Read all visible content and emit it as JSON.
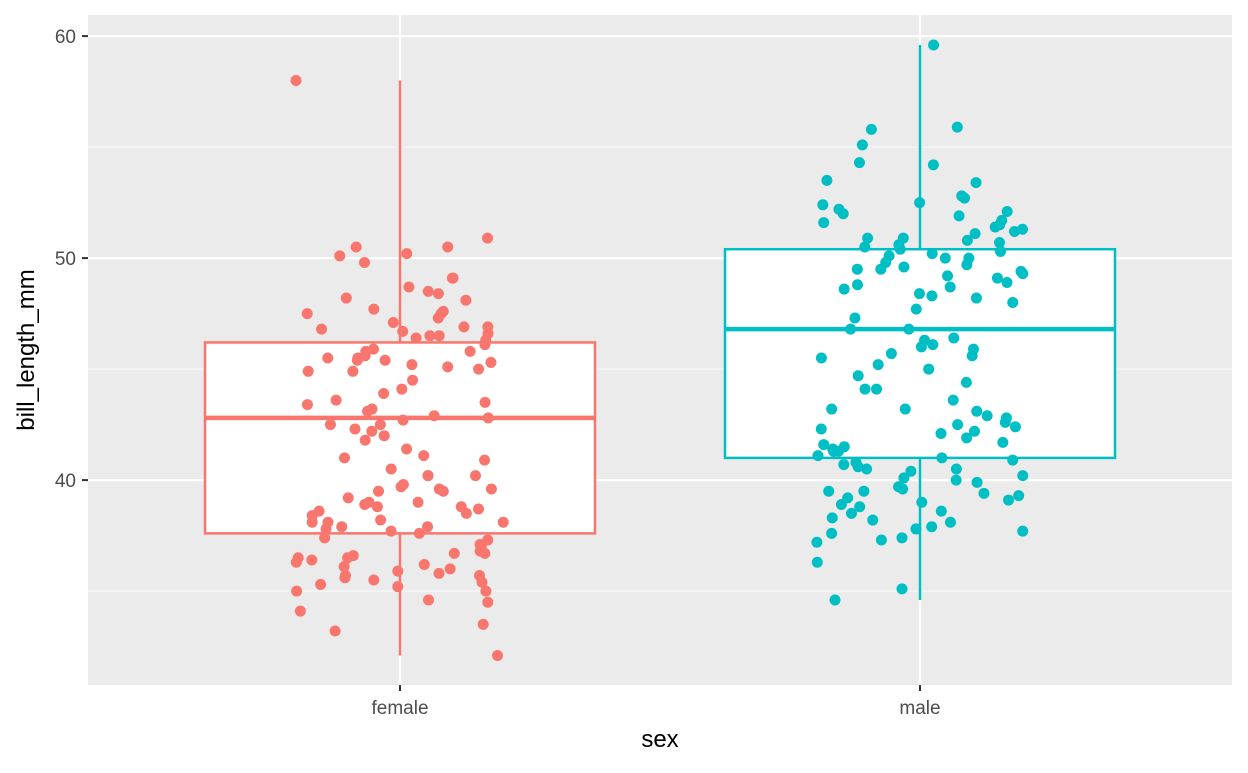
{
  "chart_data": {
    "type": "boxplot",
    "overlay": "jittered points",
    "xlabel": "sex",
    "ylabel": "bill_length_mm",
    "categories": [
      "female",
      "male"
    ],
    "colors": {
      "female": "#F8766D",
      "male": "#00BFC4"
    },
    "ylim": [
      30.77,
      60.95
    ],
    "yticks": [
      40,
      50,
      60
    ],
    "grid": true,
    "panel_background": "#EBEBEB",
    "legend": "none",
    "boxes": [
      {
        "category": "female",
        "whisker_low": 32.1,
        "q1": 37.6,
        "median": 42.8,
        "q3": 46.2,
        "whisker_high": 58.0
      },
      {
        "category": "male",
        "whisker_low": 34.6,
        "q1": 41.0,
        "median": 46.8,
        "q3": 50.4,
        "whisker_high": 59.6
      }
    ],
    "points": {
      "female": [
        58.0,
        50.9,
        50.5,
        50.1,
        50.5,
        50.2,
        49.8,
        49.1,
        49.1,
        48.7,
        48.4,
        48.5,
        48.1,
        48.2,
        47.7,
        47.6,
        47.5,
        47.5,
        47.3,
        47.1,
        46.9,
        46.9,
        46.8,
        46.7,
        46.6,
        46.5,
        46.5,
        46.4,
        46.3,
        46.1,
        45.9,
        45.8,
        45.8,
        45.6,
        45.5,
        45.5,
        45.4,
        45.4,
        45.3,
        45.2,
        45.1,
        45.0,
        44.9,
        44.9,
        44.5,
        44.1,
        43.9,
        43.6,
        43.5,
        43.4,
        43.2,
        43.1,
        42.9,
        42.8,
        42.7,
        42.5,
        42.5,
        42.3,
        42.2,
        42.0,
        41.8,
        41.4,
        41.1,
        41.0,
        40.9,
        40.5,
        40.2,
        40.2,
        40.2,
        39.8,
        39.7,
        39.6,
        39.6,
        39.5,
        39.5,
        39.2,
        39.0,
        39.0,
        38.9,
        38.8,
        38.8,
        38.7,
        38.6,
        38.5,
        38.4,
        38.2,
        38.1,
        38.1,
        38.1,
        37.9,
        37.9,
        37.8,
        37.7,
        37.6,
        37.4,
        37.3,
        37.1,
        37.0,
        36.8,
        36.7,
        36.7,
        36.6,
        36.5,
        36.5,
        36.4,
        36.3,
        36.2,
        36.1,
        36.0,
        35.9,
        35.8,
        35.7,
        35.7,
        35.6,
        35.5,
        35.4,
        35.3,
        35.2,
        35.0,
        35.0,
        34.6,
        34.5,
        34.1,
        33.5,
        33.2,
        32.1
      ],
      "male": [
        59.6,
        55.9,
        55.8,
        55.1,
        54.3,
        54.2,
        53.5,
        53.4,
        52.8,
        52.7,
        52.5,
        52.4,
        52.2,
        52.1,
        52.0,
        51.9,
        51.7,
        51.6,
        51.5,
        51.4,
        51.3,
        51.2,
        51.1,
        50.9,
        50.9,
        50.8,
        50.7,
        50.6,
        50.5,
        50.4,
        50.3,
        50.2,
        50.1,
        50.0,
        50.0,
        49.8,
        49.7,
        49.6,
        49.5,
        49.5,
        49.4,
        49.3,
        49.2,
        49.1,
        48.9,
        48.8,
        48.7,
        48.6,
        48.4,
        48.3,
        48.2,
        48.0,
        47.7,
        47.3,
        46.8,
        46.8,
        46.4,
        46.3,
        46.1,
        46.0,
        45.9,
        45.7,
        45.6,
        45.5,
        45.2,
        45.0,
        44.7,
        44.4,
        44.1,
        44.1,
        43.6,
        43.2,
        43.2,
        43.1,
        42.9,
        42.8,
        42.6,
        42.5,
        42.4,
        42.3,
        42.2,
        42.1,
        41.9,
        41.7,
        41.6,
        41.5,
        41.4,
        41.3,
        41.3,
        41.1,
        41.0,
        40.9,
        40.8,
        40.7,
        40.6,
        40.5,
        40.5,
        40.4,
        40.2,
        40.1,
        40.0,
        39.9,
        39.7,
        39.6,
        39.5,
        39.5,
        39.4,
        39.3,
        39.2,
        39.1,
        39.0,
        38.9,
        38.8,
        38.6,
        38.5,
        38.3,
        38.2,
        38.1,
        37.9,
        37.8,
        37.7,
        37.6,
        37.4,
        37.3,
        37.2,
        36.3,
        35.1,
        34.6
      ]
    }
  }
}
